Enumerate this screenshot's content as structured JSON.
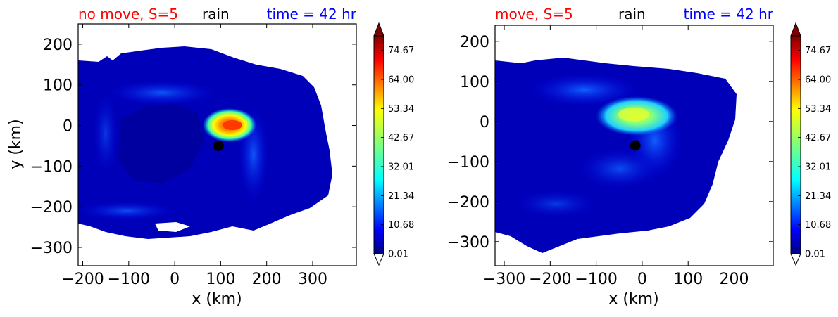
{
  "chart_data": [
    {
      "type": "heatmap",
      "title_parts": [
        {
          "text": "no move, S=5",
          "color": "#ff0000"
        },
        {
          "text": "rain",
          "color": "#000000"
        },
        {
          "text": "time = 42 hr",
          "color": "#0000ff"
        }
      ],
      "xlabel": "x (km)",
      "ylabel": "y (km)",
      "xlim": [
        -210,
        395
      ],
      "ylim": [
        -345,
        250
      ],
      "xticks": [
        -200,
        -100,
        0,
        100,
        200,
        300
      ],
      "yticks": [
        -300,
        -200,
        -100,
        0,
        100,
        200
      ],
      "center_marker": {
        "x": 95,
        "y": -50
      },
      "colorbar": {
        "ticks": [
          "0.01",
          "10.68",
          "21.34",
          "32.01",
          "42.67",
          "53.34",
          "64.00",
          "74.67"
        ],
        "min": 0.01,
        "max": 80,
        "extend": "both"
      }
    },
    {
      "type": "heatmap",
      "title_parts": [
        {
          "text": "move, S=5",
          "color": "#ff0000"
        },
        {
          "text": "rain",
          "color": "#000000"
        },
        {
          "text": "time = 42 hr",
          "color": "#0000ff"
        }
      ],
      "xlabel": "x (km)",
      "ylabel": "",
      "xlim": [
        -320,
        285
      ],
      "ylim": [
        -360,
        240
      ],
      "xticks": [
        -300,
        -200,
        -100,
        0,
        100,
        200
      ],
      "yticks": [
        -300,
        -200,
        -100,
        0,
        100,
        200
      ],
      "center_marker": {
        "x": -15,
        "y": -60
      },
      "colorbar": {
        "ticks": [
          "0.01",
          "10.68",
          "21.34",
          "32.01",
          "42.67",
          "53.34",
          "64.00",
          "74.67"
        ],
        "min": 0.01,
        "max": 80,
        "extend": "both"
      }
    }
  ]
}
